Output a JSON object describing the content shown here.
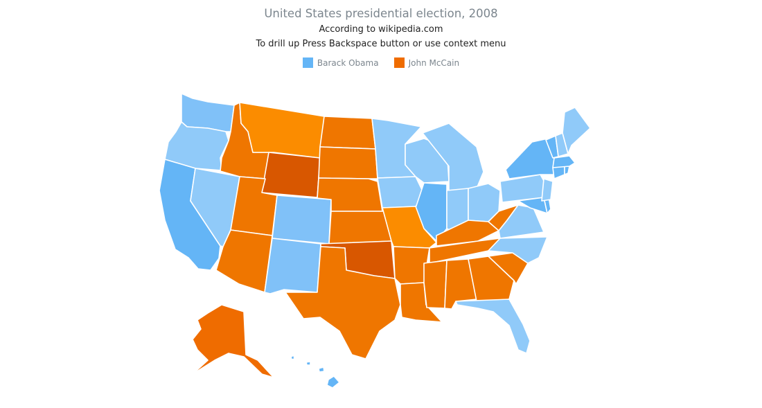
{
  "title": "United States presidential election, 2008",
  "subtitle_1": "According to wikipedia.com",
  "subtitle_2": "To drill up Press Backspace button or use context menu",
  "legend": [
    {
      "label": "Barack Obama",
      "color": "#64b5f6",
      "icon": "square-swatch"
    },
    {
      "label": "John McCain",
      "color": "#ef6c00",
      "icon": "square-swatch"
    }
  ],
  "palette": {
    "obama_light": "#90caf9",
    "obama_mid": "#80c1f8",
    "obama_dark": "#64b5f6",
    "mccain_light": "#fb8c00",
    "mccain_mid": "#ef7600",
    "mccain_dark": "#d85700"
  }
}
